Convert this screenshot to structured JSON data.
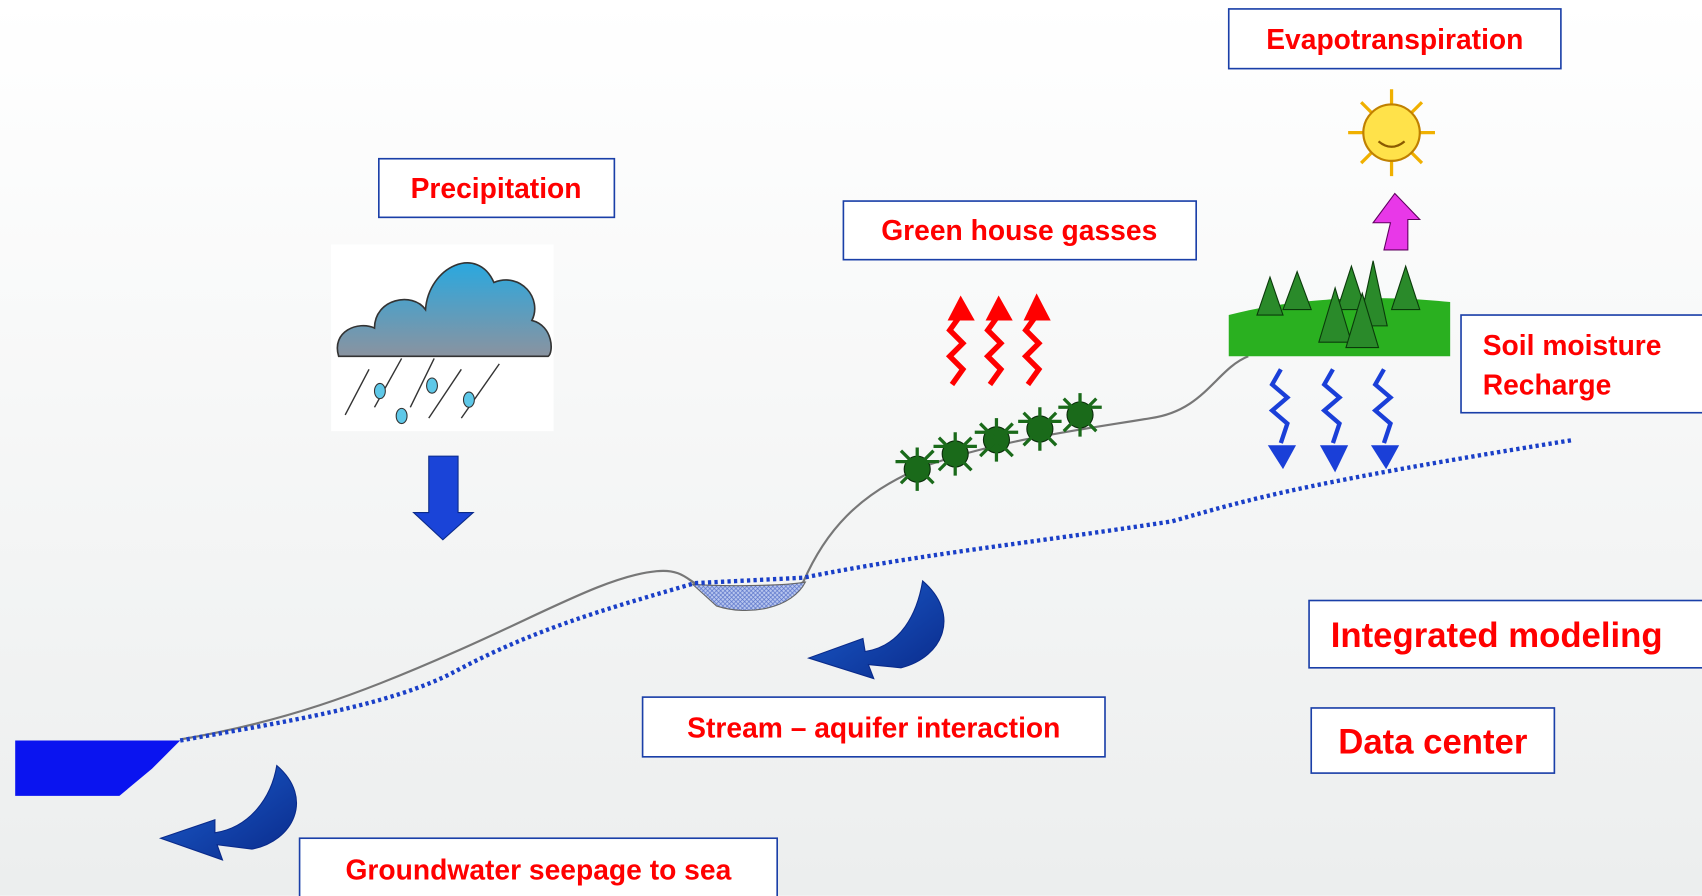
{
  "labels": {
    "evapotranspiration": "Evapotranspiration",
    "precipitation": "Precipitation",
    "greenhouse_gasses": "Green house gasses",
    "soil_moisture": [
      "Soil moisture",
      "Recharge"
    ],
    "integrated_modeling": "Integrated modeling",
    "data_center": "Data center",
    "stream_aquifer": "Stream – aquifer interaction",
    "groundwater_seepage": "Groundwater seepage to sea"
  }
}
